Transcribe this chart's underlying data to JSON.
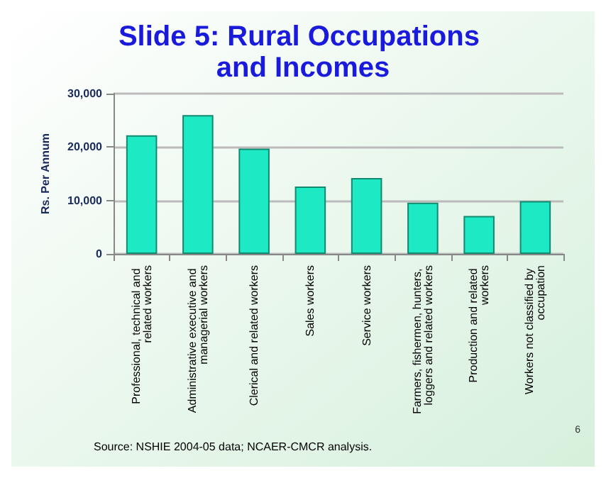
{
  "chart_data": {
    "type": "bar",
    "title": "Slide 5: Rural Occupations and Incomes",
    "ylabel": "Rs. Per Annum",
    "categories": [
      "Professional, technical and related workers",
      "Administrative executive and managerial workers",
      "Clerical and related workers",
      "Sales workers",
      "Service workers",
      "Farmers, fishermen, hunters, loggers and related workers",
      "Production and related workers",
      "Workers not classified by occupation"
    ],
    "values": [
      22200,
      26000,
      19700,
      12600,
      14200,
      9600,
      7100,
      9900
    ],
    "color": "#1de9c4",
    "ylim": [
      0,
      30000
    ],
    "yticks": [
      {
        "value": 0,
        "label": "0"
      },
      {
        "value": 10000,
        "label": "10,000"
      },
      {
        "value": 20000,
        "label": "20,000"
      },
      {
        "value": 30000,
        "label": "30,000"
      }
    ],
    "grid": "y",
    "annotations": [
      "Source: NSHIE 2004-05 data; NCAER-CMCR analysis.",
      "6"
    ]
  }
}
